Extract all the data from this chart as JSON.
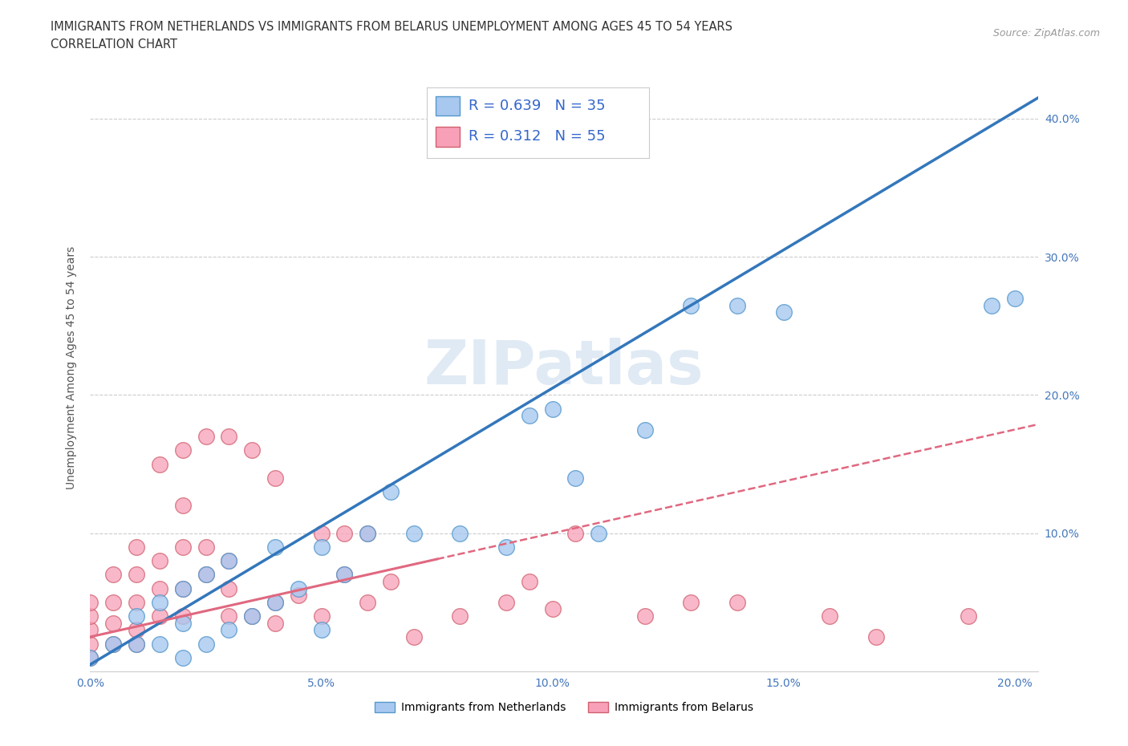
{
  "title_line1": "IMMIGRANTS FROM NETHERLANDS VS IMMIGRANTS FROM BELARUS UNEMPLOYMENT AMONG AGES 45 TO 54 YEARS",
  "title_line2": "CORRELATION CHART",
  "source_text": "Source: ZipAtlas.com",
  "ylabel": "Unemployment Among Ages 45 to 54 years",
  "xlim": [
    0.0,
    0.205
  ],
  "ylim": [
    0.0,
    0.44
  ],
  "xticks": [
    0.0,
    0.05,
    0.1,
    0.15,
    0.2
  ],
  "xticklabels": [
    "0.0%",
    "5.0%",
    "10.0%",
    "15.0%",
    "20.0%"
  ],
  "yticks": [
    0.1,
    0.2,
    0.3,
    0.4
  ],
  "yticklabels": [
    "10.0%",
    "20.0%",
    "30.0%",
    "40.0%"
  ],
  "netherlands_color": "#a8c8f0",
  "netherlands_edge": "#5599cc",
  "belarus_color": "#f8a0b8",
  "belarus_edge": "#d06070",
  "netherlands_R": 0.639,
  "netherlands_N": 35,
  "belarus_R": 0.312,
  "belarus_N": 55,
  "line_netherlands_color": "#3377bb",
  "line_belarus_color": "#e06880",
  "legend_R_color": "#3366cc",
  "watermark_text": "ZIPatlas",
  "netherlands_x": [
    0.0,
    0.005,
    0.01,
    0.01,
    0.015,
    0.015,
    0.02,
    0.02,
    0.02,
    0.025,
    0.025,
    0.03,
    0.03,
    0.035,
    0.04,
    0.04,
    0.045,
    0.05,
    0.05,
    0.055,
    0.06,
    0.065,
    0.07,
    0.08,
    0.09,
    0.095,
    0.1,
    0.105,
    0.11,
    0.12,
    0.13,
    0.14,
    0.15,
    0.195,
    0.2
  ],
  "netherlands_y": [
    0.01,
    0.02,
    0.02,
    0.04,
    0.02,
    0.05,
    0.01,
    0.035,
    0.06,
    0.02,
    0.07,
    0.03,
    0.08,
    0.04,
    0.05,
    0.09,
    0.06,
    0.09,
    0.03,
    0.07,
    0.1,
    0.13,
    0.1,
    0.1,
    0.09,
    0.185,
    0.19,
    0.14,
    0.1,
    0.175,
    0.265,
    0.265,
    0.26,
    0.265,
    0.27
  ],
  "belarus_x": [
    0.0,
    0.0,
    0.0,
    0.0,
    0.0,
    0.005,
    0.005,
    0.005,
    0.005,
    0.01,
    0.01,
    0.01,
    0.01,
    0.01,
    0.015,
    0.015,
    0.015,
    0.015,
    0.02,
    0.02,
    0.02,
    0.02,
    0.02,
    0.025,
    0.025,
    0.025,
    0.03,
    0.03,
    0.03,
    0.03,
    0.035,
    0.035,
    0.04,
    0.04,
    0.04,
    0.045,
    0.05,
    0.05,
    0.055,
    0.055,
    0.06,
    0.06,
    0.065,
    0.07,
    0.08,
    0.09,
    0.095,
    0.1,
    0.105,
    0.12,
    0.13,
    0.14,
    0.16,
    0.17,
    0.19
  ],
  "belarus_y": [
    0.01,
    0.02,
    0.03,
    0.04,
    0.05,
    0.02,
    0.035,
    0.05,
    0.07,
    0.02,
    0.03,
    0.05,
    0.07,
    0.09,
    0.04,
    0.06,
    0.08,
    0.15,
    0.04,
    0.06,
    0.09,
    0.12,
    0.16,
    0.07,
    0.09,
    0.17,
    0.04,
    0.06,
    0.08,
    0.17,
    0.04,
    0.16,
    0.035,
    0.05,
    0.14,
    0.055,
    0.04,
    0.1,
    0.07,
    0.1,
    0.05,
    0.1,
    0.065,
    0.025,
    0.04,
    0.05,
    0.065,
    0.045,
    0.1,
    0.04,
    0.05,
    0.05,
    0.04,
    0.025,
    0.04
  ]
}
